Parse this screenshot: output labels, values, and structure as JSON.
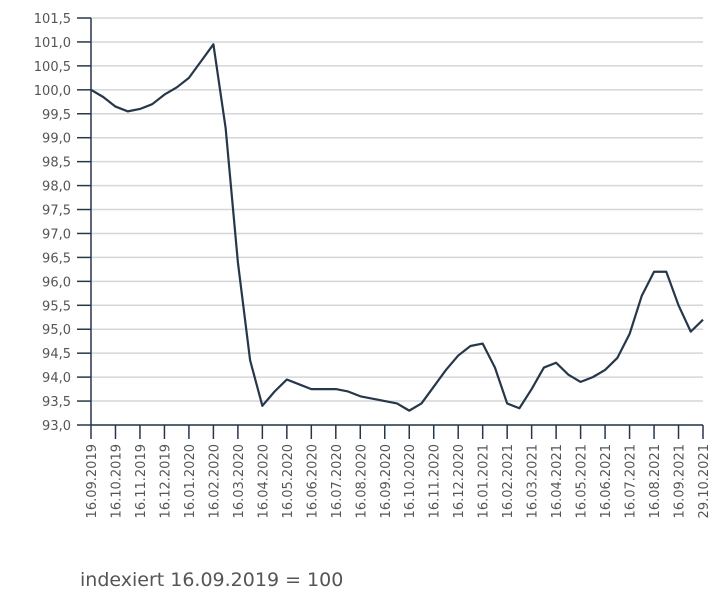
{
  "chart_data": {
    "type": "line",
    "categories": [
      "16.09.2019",
      null,
      "16.10.2019",
      null,
      "16.11.2019",
      null,
      "16.12.2019",
      null,
      "16.01.2020",
      null,
      "16.02.2020",
      null,
      "16.03.2020",
      null,
      "16.04.2020",
      null,
      "16.05.2020",
      null,
      "16.06.2020",
      null,
      "16.07.2020",
      null,
      "16.08.2020",
      null,
      "16.09.2020",
      null,
      "16.10.2020",
      null,
      "16.11.2020",
      null,
      "16.12.2020",
      null,
      "16.01.2021",
      null,
      "16.02.2021",
      null,
      "16.03.2021",
      null,
      "16.04.2021",
      null,
      "16.05.2021",
      null,
      "16.06.2021",
      null,
      "16.07.2021",
      null,
      "16.08.2021",
      null,
      "16.09.2021",
      null,
      "29.10.2021"
    ],
    "series": [
      {
        "color": "#27374a",
        "values": [
          100.0,
          99.85,
          99.65,
          99.55,
          99.6,
          99.7,
          99.9,
          100.05,
          100.25,
          100.6,
          100.95,
          99.2,
          96.4,
          94.35,
          93.4,
          93.7,
          93.95,
          93.85,
          93.75,
          93.75,
          93.75,
          93.7,
          93.6,
          93.55,
          93.5,
          93.45,
          93.3,
          93.45,
          93.8,
          94.15,
          94.45,
          94.65,
          94.7,
          94.2,
          93.45,
          93.35,
          93.75,
          94.2,
          94.3,
          94.05,
          93.9,
          94.0,
          94.15,
          94.4,
          94.9,
          95.7,
          96.2,
          96.2,
          95.5,
          94.95,
          95.2
        ]
      }
    ],
    "ylim": [
      93.0,
      101.5
    ],
    "yticks": [
      {
        "value": 93.0,
        "label": "93,0"
      },
      {
        "value": 93.5,
        "label": "93,5"
      },
      {
        "value": 94.0,
        "label": "94,0"
      },
      {
        "value": 94.5,
        "label": "94,5"
      },
      {
        "value": 95.0,
        "label": "95,0"
      },
      {
        "value": 95.5,
        "label": "95,5"
      },
      {
        "value": 96.0,
        "label": "96,0"
      },
      {
        "value": 96.5,
        "label": "96,5"
      },
      {
        "value": 97.0,
        "label": "97,0"
      },
      {
        "value": 97.5,
        "label": "97,5"
      },
      {
        "value": 98.0,
        "label": "98,0"
      },
      {
        "value": 98.5,
        "label": "98,5"
      },
      {
        "value": 99.0,
        "label": "99,0"
      },
      {
        "value": 99.5,
        "label": "99,5"
      },
      {
        "value": 100.0,
        "label": "100,0"
      },
      {
        "value": 100.5,
        "label": "100,5"
      },
      {
        "value": 101.0,
        "label": "101,0"
      },
      {
        "value": 101.5,
        "label": "101,5"
      }
    ],
    "grid": true,
    "note": "indexiert 16.09.2019 = 100"
  }
}
